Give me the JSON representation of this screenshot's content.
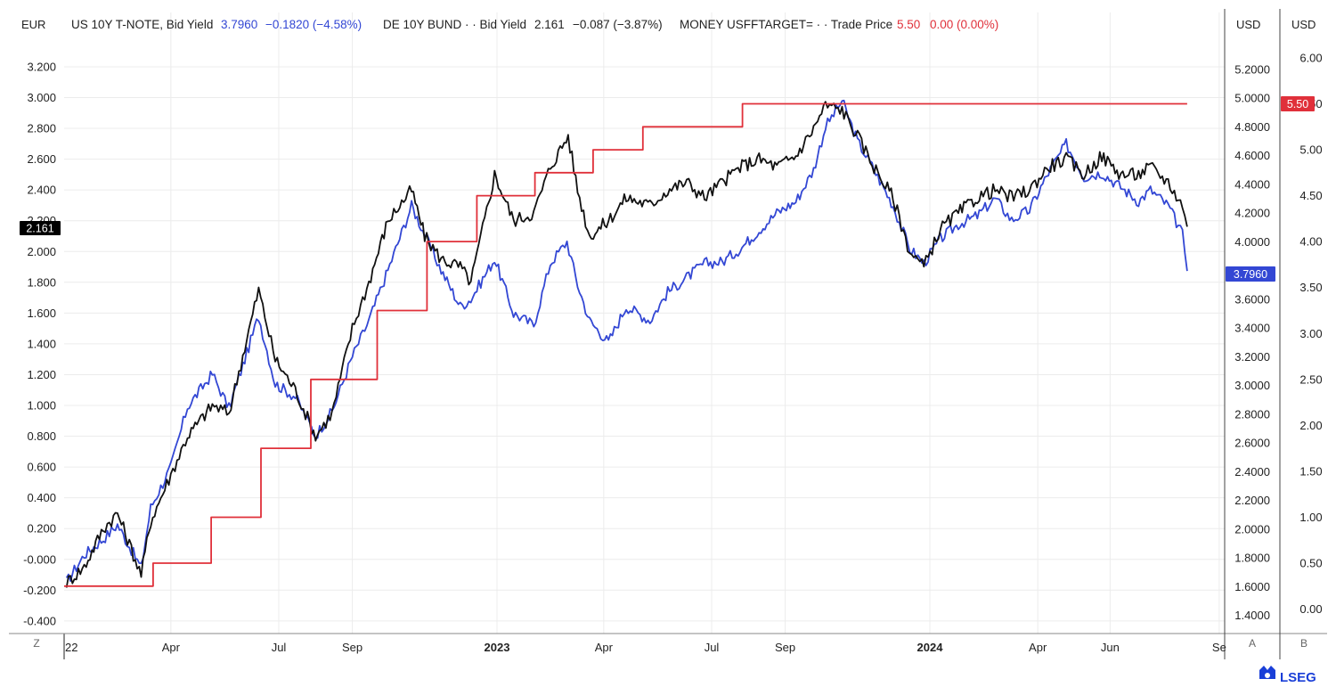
{
  "chart_data": {
    "type": "line",
    "legend": [
      {
        "name": "US 10Y T-NOTE, Bid Yield",
        "last": "3.7960",
        "change": "−0.1820 (−4.58%)",
        "color": "#3347d4"
      },
      {
        "name": "DE 10Y BUND · · Bid Yield",
        "last": "2.161",
        "change": "−0.087 (−3.87%)",
        "color": "#111111"
      },
      {
        "name": "MONEY USFFTARGET= · · Trade Price",
        "last": "5.50",
        "change": "0.00 (0.00%)",
        "color": "#e0303a"
      }
    ],
    "axes": {
      "left": {
        "unit": "EUR",
        "ticks": [
          "3.200",
          "3.000",
          "2.800",
          "2.600",
          "2.400",
          "2.200",
          "2.000",
          "1.800",
          "1.600",
          "1.400",
          "1.200",
          "1.000",
          "0.800",
          "0.600",
          "0.400",
          "0.200",
          "-0.000",
          "-0.200",
          "-0.400"
        ],
        "range": [
          -0.4,
          3.2
        ]
      },
      "right1": {
        "unit": "USD",
        "ticks": [
          "5.2000",
          "5.0000",
          "4.8000",
          "4.6000",
          "4.4000",
          "4.2000",
          "4.0000",
          "3.8000",
          "3.6000",
          "3.4000",
          "3.2000",
          "3.0000",
          "2.8000",
          "2.6000",
          "2.4000",
          "2.2000",
          "2.0000",
          "1.8000",
          "1.6000",
          "1.4000"
        ],
        "range": [
          1.4,
          5.2
        ]
      },
      "right2": {
        "unit": "USD",
        "ticks": [
          "6.00",
          "5.50",
          "5.00",
          "4.50",
          "4.00",
          "3.50",
          "3.00",
          "2.50",
          "2.00",
          "1.50",
          "1.00",
          "0.50",
          "0.00"
        ],
        "range": [
          0,
          6
        ]
      },
      "x": {
        "ticks": [
          "22",
          "Apr",
          "Jul",
          "Sep",
          "2023",
          "Apr",
          "Jul",
          "Sep",
          "2024",
          "Apr",
          "Jun",
          "Se"
        ],
        "bold": [
          "2023",
          "2024"
        ]
      }
    },
    "badges": {
      "de": "2.161",
      "us": "3.7960",
      "ff": "5.50"
    },
    "series": [
      {
        "name": "US 10Y T-NOTE, Bid Yield",
        "axis": "right1",
        "color": "#3347d4",
        "x": [
          "2022-01-03",
          "2022-01-18",
          "2022-02-03",
          "2022-02-15",
          "2022-03-07",
          "2022-03-15",
          "2022-04-01",
          "2022-04-15",
          "2022-05-06",
          "2022-05-20",
          "2022-06-14",
          "2022-06-28",
          "2022-07-15",
          "2022-08-01",
          "2022-08-15",
          "2022-09-01",
          "2022-09-15",
          "2022-10-01",
          "2022-10-21",
          "2022-11-01",
          "2022-11-15",
          "2022-12-01",
          "2022-12-10",
          "2022-12-30",
          "2023-01-15",
          "2023-02-01",
          "2023-02-15",
          "2023-03-01",
          "2023-03-10",
          "2023-03-20",
          "2023-04-05",
          "2023-04-20",
          "2023-05-10",
          "2023-05-25",
          "2023-06-10",
          "2023-06-25",
          "2023-07-10",
          "2023-07-25",
          "2023-08-10",
          "2023-08-25",
          "2023-09-10",
          "2023-09-25",
          "2023-10-05",
          "2023-10-19",
          "2023-11-01",
          "2023-11-15",
          "2023-12-01",
          "2023-12-15",
          "2023-12-27",
          "2024-01-10",
          "2024-01-25",
          "2024-02-10",
          "2024-02-25",
          "2024-03-10",
          "2024-03-25",
          "2024-04-10",
          "2024-04-25",
          "2024-05-10",
          "2024-05-25",
          "2024-06-10",
          "2024-06-25",
          "2024-07-05",
          "2024-07-20",
          "2024-08-01",
          "2024-08-05"
        ],
        "y": [
          1.63,
          1.82,
          1.93,
          2.03,
          1.73,
          2.15,
          2.43,
          2.85,
          3.08,
          2.84,
          3.48,
          3.01,
          2.92,
          2.65,
          2.82,
          3.2,
          3.45,
          3.8,
          4.25,
          4.05,
          3.8,
          3.55,
          3.6,
          3.88,
          3.5,
          3.42,
          3.85,
          4.0,
          3.7,
          3.45,
          3.3,
          3.55,
          3.45,
          3.65,
          3.75,
          3.85,
          3.86,
          3.95,
          4.08,
          4.2,
          4.28,
          4.5,
          4.8,
          4.98,
          4.7,
          4.5,
          4.25,
          3.95,
          3.85,
          4.02,
          4.12,
          4.18,
          4.3,
          4.15,
          4.22,
          4.48,
          4.68,
          4.45,
          4.48,
          4.38,
          4.28,
          4.36,
          4.25,
          4.05,
          3.796
        ]
      },
      {
        "name": "DE 10Y BUND · · Bid Yield",
        "axis": "left",
        "color": "#111111",
        "x": [
          "2022-01-03",
          "2022-01-18",
          "2022-02-03",
          "2022-02-15",
          "2022-03-07",
          "2022-03-15",
          "2022-04-01",
          "2022-04-15",
          "2022-05-06",
          "2022-05-20",
          "2022-06-14",
          "2022-06-28",
          "2022-07-15",
          "2022-08-01",
          "2022-08-15",
          "2022-09-01",
          "2022-09-15",
          "2022-10-01",
          "2022-10-21",
          "2022-11-01",
          "2022-11-15",
          "2022-12-01",
          "2022-12-10",
          "2022-12-30",
          "2023-01-15",
          "2023-02-01",
          "2023-02-15",
          "2023-03-02",
          "2023-03-10",
          "2023-03-20",
          "2023-04-05",
          "2023-04-20",
          "2023-05-10",
          "2023-05-25",
          "2023-06-10",
          "2023-06-25",
          "2023-07-10",
          "2023-07-25",
          "2023-08-10",
          "2023-08-25",
          "2023-09-10",
          "2023-09-25",
          "2023-10-05",
          "2023-10-19",
          "2023-11-01",
          "2023-11-15",
          "2023-12-01",
          "2023-12-15",
          "2023-12-27",
          "2024-01-10",
          "2024-01-25",
          "2024-02-10",
          "2024-02-25",
          "2024-03-10",
          "2024-03-25",
          "2024-04-10",
          "2024-04-25",
          "2024-05-10",
          "2024-05-25",
          "2024-06-10",
          "2024-06-25",
          "2024-07-05",
          "2024-07-20",
          "2024-08-01",
          "2024-08-05"
        ],
        "y": [
          -0.15,
          -0.05,
          0.2,
          0.3,
          -0.1,
          0.25,
          0.55,
          0.8,
          1.0,
          0.95,
          1.75,
          1.3,
          1.1,
          0.8,
          0.95,
          1.5,
          1.8,
          2.2,
          2.4,
          2.1,
          1.95,
          1.9,
          1.8,
          2.5,
          2.2,
          2.25,
          2.55,
          2.75,
          2.4,
          2.1,
          2.2,
          2.35,
          2.3,
          2.4,
          2.45,
          2.35,
          2.45,
          2.55,
          2.6,
          2.55,
          2.62,
          2.8,
          2.95,
          2.92,
          2.75,
          2.55,
          2.35,
          2.0,
          1.9,
          2.15,
          2.25,
          2.35,
          2.4,
          2.35,
          2.4,
          2.55,
          2.6,
          2.5,
          2.62,
          2.5,
          2.5,
          2.55,
          2.45,
          2.3,
          2.161
        ]
      },
      {
        "name": "MONEY USFFTARGET= · · Trade Price",
        "axis": "right2",
        "color": "#e0303a",
        "x": [
          "2022-01-01",
          "2022-03-17",
          "2022-03-17",
          "2022-05-05",
          "2022-05-05",
          "2022-06-16",
          "2022-06-16",
          "2022-07-28",
          "2022-07-28",
          "2022-09-22",
          "2022-09-22",
          "2022-11-03",
          "2022-11-03",
          "2022-12-15",
          "2022-12-15",
          "2023-02-02",
          "2023-02-02",
          "2023-03-23",
          "2023-03-23",
          "2023-05-04",
          "2023-05-04",
          "2023-07-27",
          "2023-07-27",
          "2024-08-05"
        ],
        "y": [
          0.25,
          0.25,
          0.5,
          0.5,
          1.0,
          1.0,
          1.75,
          1.75,
          2.5,
          2.5,
          3.25,
          3.25,
          4.0,
          4.0,
          4.5,
          4.5,
          4.75,
          4.75,
          5.0,
          5.0,
          5.25,
          5.25,
          5.5,
          5.5
        ]
      }
    ]
  },
  "controls": {
    "zoom_left": "Z",
    "scale_a": "A",
    "scale_b": "B"
  },
  "brand": {
    "name": "LSEG"
  }
}
